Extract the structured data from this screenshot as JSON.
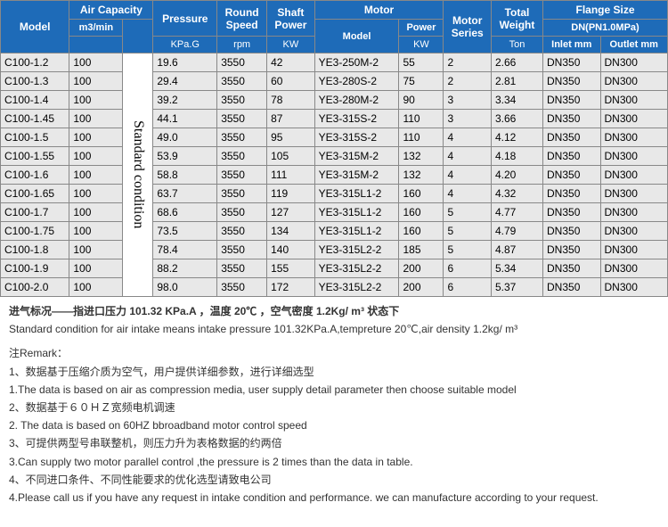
{
  "headers": {
    "model": "Model",
    "airCap": "Air Capacity",
    "airCapUnit": "m3/min",
    "pressure": "Pressure",
    "pressureUnit": "KPa.G",
    "roundSpeed": "Round\nSpeed",
    "roundSpeedUnit": "rpm",
    "shaftPower": "Shaft\nPower",
    "shaftPowerUnit": "KW",
    "motor": "Motor",
    "motorModel": "Model",
    "motorPower": "Power",
    "motorPowerUnit": "KW",
    "motorSeries": "Motor\nSeries",
    "totalWeight": "Total\nWeight",
    "totalWeightUnit": "Ton",
    "flange": "Flange Size",
    "flangeSub": "DN(PN1.0MPa)",
    "inlet": "Inlet mm",
    "outlet": "Outlet mm",
    "vertLabel": "Standard condition"
  },
  "rows": [
    {
      "model": "C100-1.2",
      "m3min": "100",
      "kpg": "19.6",
      "rpm": "3550",
      "kw": "42",
      "mmodel": "YE3-250M-2",
      "mpower": "55",
      "mseries": "2",
      "ton": "2.66",
      "inlet": "DN350",
      "outlet": "DN300"
    },
    {
      "model": "C100-1.3",
      "m3min": "100",
      "kpg": "29.4",
      "rpm": "3550",
      "kw": "60",
      "mmodel": "YE3-280S-2",
      "mpower": "75",
      "mseries": "2",
      "ton": "2.81",
      "inlet": "DN350",
      "outlet": "DN300"
    },
    {
      "model": "C100-1.4",
      "m3min": "100",
      "kpg": "39.2",
      "rpm": "3550",
      "kw": "78",
      "mmodel": "YE3-280M-2",
      "mpower": "90",
      "mseries": "3",
      "ton": "3.34",
      "inlet": "DN350",
      "outlet": "DN300"
    },
    {
      "model": "C100-1.45",
      "m3min": "100",
      "kpg": "44.1",
      "rpm": "3550",
      "kw": "87",
      "mmodel": "YE3-315S-2",
      "mpower": "110",
      "mseries": "3",
      "ton": "3.66",
      "inlet": "DN350",
      "outlet": "DN300"
    },
    {
      "model": "C100-1.5",
      "m3min": "100",
      "kpg": "49.0",
      "rpm": "3550",
      "kw": "95",
      "mmodel": "YE3-315S-2",
      "mpower": "110",
      "mseries": "4",
      "ton": "4.12",
      "inlet": "DN350",
      "outlet": "DN300"
    },
    {
      "model": "C100-1.55",
      "m3min": "100",
      "kpg": "53.9",
      "rpm": "3550",
      "kw": "105",
      "mmodel": "YE3-315M-2",
      "mpower": "132",
      "mseries": "4",
      "ton": "4.18",
      "inlet": "DN350",
      "outlet": "DN300"
    },
    {
      "model": "C100-1.6",
      "m3min": "100",
      "kpg": "58.8",
      "rpm": "3550",
      "kw": "111",
      "mmodel": "YE3-315M-2",
      "mpower": "132",
      "mseries": "4",
      "ton": "4.20",
      "inlet": "DN350",
      "outlet": "DN300"
    },
    {
      "model": "C100-1.65",
      "m3min": "100",
      "kpg": "63.7",
      "rpm": "3550",
      "kw": "119",
      "mmodel": "YE3-315L1-2",
      "mpower": "160",
      "mseries": "4",
      "ton": "4.32",
      "inlet": "DN350",
      "outlet": "DN300"
    },
    {
      "model": "C100-1.7",
      "m3min": "100",
      "kpg": "68.6",
      "rpm": "3550",
      "kw": "127",
      "mmodel": "YE3-315L1-2",
      "mpower": "160",
      "mseries": "5",
      "ton": "4.77",
      "inlet": "DN350",
      "outlet": "DN300"
    },
    {
      "model": "C100-1.75",
      "m3min": "100",
      "kpg": "73.5",
      "rpm": "3550",
      "kw": "134",
      "mmodel": "YE3-315L1-2",
      "mpower": "160",
      "mseries": "5",
      "ton": "4.79",
      "inlet": "DN350",
      "outlet": "DN300"
    },
    {
      "model": "C100-1.8",
      "m3min": "100",
      "kpg": "78.4",
      "rpm": "3550",
      "kw": "140",
      "mmodel": "YE3-315L2-2",
      "mpower": "185",
      "mseries": "5",
      "ton": "4.87",
      "inlet": "DN350",
      "outlet": "DN300"
    },
    {
      "model": "C100-1.9",
      "m3min": "100",
      "kpg": "88.2",
      "rpm": "3550",
      "kw": "155",
      "mmodel": "YE3-315L2-2",
      "mpower": "200",
      "mseries": "6",
      "ton": "5.34",
      "inlet": "DN350",
      "outlet": "DN300"
    },
    {
      "model": "C100-2.0",
      "m3min": "100",
      "kpg": "98.0",
      "rpm": "3550",
      "kw": "172",
      "mmodel": "YE3-315L2-2",
      "mpower": "200",
      "mseries": "6",
      "ton": "5.37",
      "inlet": "DN350",
      "outlet": "DN300"
    }
  ],
  "remarks": {
    "l1": "进气标况——指进口压力 101.32 KPa.A ，温度 20℃ ，空气密度 1.2Kg/ m³ 状态下",
    "l2": "Standard condition for air intake means intake pressure 101.32KPa.A,tempreture 20℃,air density 1.2kg/ m³",
    "title": "注Remark：",
    "r1cn": "1、数据基于压缩介质为空气，用户提供详细参数，进行详细选型",
    "r1en": "1.The data is based on air as compression media, user supply detail parameter then choose suitable model",
    "r2cn": "2、数据基于６０ＨＺ宽频电机调速",
    "r2en": "2. The data is based on 60HZ bbroadband motor  control speed",
    "r3cn": "3、可提供两型号串联整机，则压力升为表格数据的约两倍",
    "r3en": "3.Can supply two motor parallel control ,the pressure is 2 times than the data in table.",
    "r4cn": "4、不同进口条件、不同性能要求的优化选型请致电公司",
    "r4en": "4.Please call us if you have any request in intake condition and performance. we can manufacture according to your request."
  },
  "style": {
    "headerBg": "#1e6bb8",
    "cellBg": "#e8e8e8",
    "borderColor": "#888888"
  }
}
